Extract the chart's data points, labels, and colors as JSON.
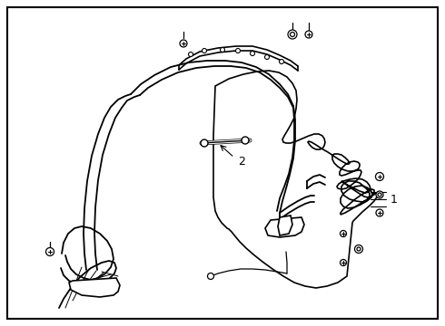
{
  "background_color": "#ffffff",
  "border_color": "#000000",
  "line_color": "#000000",
  "label_1": "1",
  "label_2": "2",
  "fig_width": 4.9,
  "fig_height": 3.6,
  "dpi": 100
}
